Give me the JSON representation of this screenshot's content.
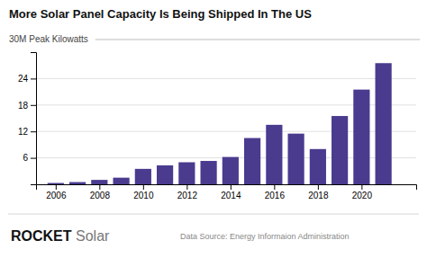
{
  "chart_data": {
    "type": "bar",
    "title": "More Solar Panel Capacity Is Being Shipped In The US",
    "ylabel": "30M Peak Kilowatts",
    "x": [
      2006,
      2007,
      2008,
      2009,
      2010,
      2011,
      2012,
      2013,
      2014,
      2015,
      2016,
      2017,
      2018,
      2019,
      2020,
      2021
    ],
    "values": [
      0.3,
      0.5,
      1.0,
      1.5,
      3.5,
      4.3,
      5.0,
      5.3,
      6.2,
      10.5,
      13.5,
      11.5,
      8.0,
      15.5,
      21.5,
      27.5
    ],
    "color": "#4a3b8f",
    "xlim": [
      2005.1,
      2022.5
    ],
    "xticks": [
      2006,
      2008,
      2010,
      2012,
      2014,
      2016,
      2018,
      2020
    ],
    "ylim": [
      0,
      30
    ],
    "yticks": [
      6,
      12,
      18,
      24
    ],
    "grid": true,
    "annotations": [
      "ROCKET Solar",
      "Data Source: Energy Informaion Administration"
    ]
  }
}
